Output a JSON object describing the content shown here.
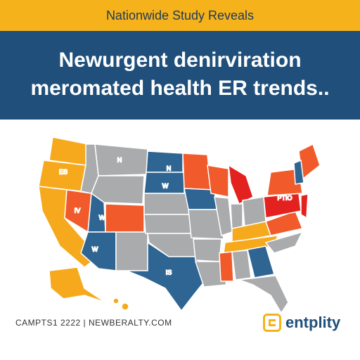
{
  "header": {
    "kicker": "Nationwide Study Reveals",
    "title_lines": [
      "Newurgent denirviration",
      "meromated health ER trends.."
    ]
  },
  "map": {
    "labels": [
      "ES",
      "N",
      "W",
      "IV",
      "W",
      "W",
      "N",
      "IS",
      "PTIO"
    ]
  },
  "footer": {
    "source": "CAMPTS1 2222  |  NEWBERALTY.COM",
    "logo": "entplity"
  }
}
